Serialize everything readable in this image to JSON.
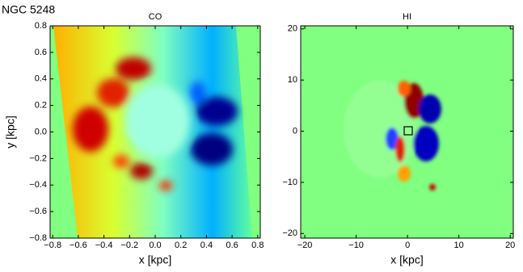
{
  "figure_title": "NGC 5248",
  "chart_data": [
    {
      "type": "image",
      "title": "CO",
      "xlabel": "x [kpc]",
      "ylabel": "y [kpc]",
      "xlim": [
        -0.82,
        0.82
      ],
      "ylim": [
        -0.8,
        0.8
      ],
      "xticks": [
        {
          "value": -0.8,
          "label": "−0.8"
        },
        {
          "value": -0.6,
          "label": "−0.6"
        },
        {
          "value": -0.4,
          "label": "−0.4"
        },
        {
          "value": -0.2,
          "label": "−0.2"
        },
        {
          "value": 0,
          "label": "0.0"
        },
        0.2,
        0.4,
        0.6,
        0.8
      ],
      "yticks": [
        {
          "value": -0.8,
          "label": "−0.8"
        },
        {
          "value": -0.6,
          "label": "−0.6"
        },
        {
          "value": -0.4,
          "label": "−0.4"
        },
        {
          "value": -0.2,
          "label": "−0.2"
        },
        {
          "value": 0,
          "label": "0.0"
        },
        0.2,
        0.4,
        0.6,
        0.8
      ]
    },
    {
      "type": "image",
      "title": "HI",
      "xlabel": "x [kpc]",
      "xlim": [
        -20.8,
        20.6
      ],
      "ylim": [
        -20.9,
        20.6
      ],
      "xticks": [
        {
          "value": -20,
          "label": "−20"
        },
        {
          "value": -10,
          "label": "−10"
        },
        0,
        10,
        20
      ],
      "yticks": [
        {
          "value": -20,
          "label": "−20"
        },
        {
          "value": -10,
          "label": "−10"
        },
        0,
        10,
        20
      ]
    }
  ]
}
